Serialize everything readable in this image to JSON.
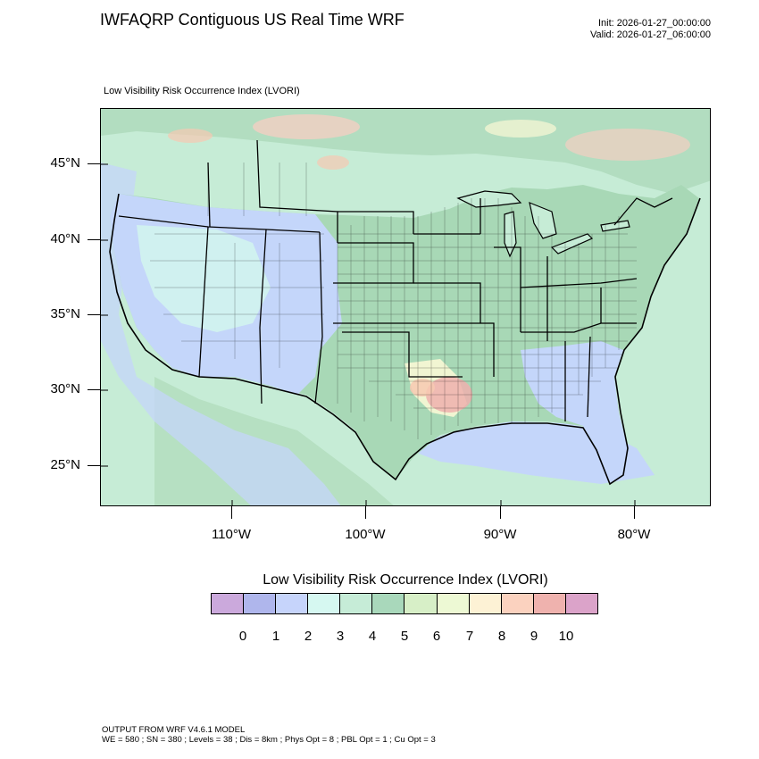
{
  "header": {
    "title": "IWFAQRP Contiguous US Real Time WRF",
    "init": "Init: 2026-01-27_00:00:00",
    "valid": "Valid: 2026-01-27_06:00:00"
  },
  "map": {
    "subtitle": "Low Visibility Risk Occurrence Index   (LVORI)",
    "lat_labels": [
      "45°N",
      "40°N",
      "35°N",
      "30°N",
      "25°N"
    ],
    "lon_labels": [
      "110°W",
      "100°W",
      "90°W",
      "80°W"
    ],
    "colors": {
      "ocean": "#c6ecd6",
      "land_base": "#b6e0c2",
      "low_vis_blue": "#c4d6fa",
      "light_cyan": "#d2f4ee",
      "green_band": "#a8d8b6",
      "warm_yellow": "#f1f5d2",
      "warm_orange": "#f7c9b2",
      "warm_red": "#eeb0ae",
      "boundary": "#000000"
    }
  },
  "colorbar": {
    "title": "Low Visibility Risk Occurrence Index  (LVORI)",
    "labels": [
      "0",
      "1",
      "2",
      "3",
      "4",
      "5",
      "6",
      "7",
      "8",
      "9",
      "10"
    ],
    "colors": [
      "#cba9dc",
      "#afb6ec",
      "#c6d4fb",
      "#d6f8f1",
      "#c6ecd7",
      "#a9d8bb",
      "#d7efc7",
      "#edf9d4",
      "#fdf2d5",
      "#fbd2bf",
      "#efb2ae",
      "#dba3c9"
    ]
  },
  "footer": {
    "line1": "OUTPUT FROM WRF V4.6.1 MODEL",
    "line2": "WE = 580 ; SN = 380 ; Levels = 38 ; Dis = 8km ; Phys Opt = 8 ; PBL Opt = 1 ; Cu Opt = 3"
  }
}
